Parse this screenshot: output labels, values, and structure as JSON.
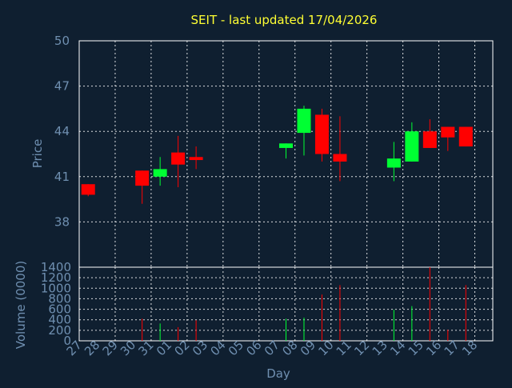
{
  "chart_data": {
    "type": "candlestick",
    "title": "SEIT - last updated 17/04/2026",
    "xlabel": "Day",
    "colors": {
      "background": "#0f1f30",
      "up": "#00ff33",
      "down": "#ff0000",
      "title": "#ffff33",
      "axis_text": "#6f8fb0",
      "grid": "#ffffff"
    },
    "x_ticks": [
      "27",
      "28",
      "29",
      "30",
      "31",
      "01",
      "02",
      "03",
      "04",
      "05",
      "06",
      "07",
      "08",
      "09",
      "10",
      "11",
      "12",
      "13",
      "14",
      "15",
      "16",
      "17",
      "18"
    ],
    "price_panel": {
      "ylabel": "Price",
      "ylim": [
        35,
        50
      ],
      "y_ticks": [
        "50",
        "47",
        "44",
        "41",
        "38"
      ],
      "y_tick_values": [
        50,
        47,
        44,
        41,
        38
      ],
      "candles": [
        {
          "day": "27",
          "open": 40.5,
          "high": 40.5,
          "low": 39.7,
          "close": 39.8
        },
        {
          "day": "30",
          "open": 41.4,
          "high": 41.4,
          "low": 39.2,
          "close": 40.4
        },
        {
          "day": "31",
          "open": 41.0,
          "high": 42.3,
          "low": 40.4,
          "close": 41.5
        },
        {
          "day": "01",
          "open": 42.6,
          "high": 43.7,
          "low": 40.3,
          "close": 41.8
        },
        {
          "day": "02",
          "open": 42.3,
          "high": 43.0,
          "low": 41.5,
          "close": 42.1
        },
        {
          "day": "07",
          "open": 42.9,
          "high": 43.2,
          "low": 42.2,
          "close": 43.2
        },
        {
          "day": "08",
          "open": 43.9,
          "high": 45.7,
          "low": 42.4,
          "close": 45.5
        },
        {
          "day": "09",
          "open": 45.1,
          "high": 45.5,
          "low": 42.0,
          "close": 42.5
        },
        {
          "day": "10",
          "open": 42.5,
          "high": 45.0,
          "low": 40.7,
          "close": 42.0
        },
        {
          "day": "13",
          "open": 41.6,
          "high": 43.3,
          "low": 40.7,
          "close": 42.2
        },
        {
          "day": "14",
          "open": 42.0,
          "high": 44.6,
          "low": 42.0,
          "close": 44.0
        },
        {
          "day": "15",
          "open": 44.0,
          "high": 44.8,
          "low": 42.9,
          "close": 42.9
        },
        {
          "day": "16",
          "open": 44.3,
          "high": 44.3,
          "low": 42.7,
          "close": 43.6
        },
        {
          "day": "17",
          "open": 44.3,
          "high": 44.3,
          "low": 43.0,
          "close": 43.0
        }
      ]
    },
    "volume_panel": {
      "ylabel": "Volume (0000)",
      "ylim": [
        0,
        1400
      ],
      "y_ticks": [
        "1400",
        "1200",
        "1000",
        "800",
        "600",
        "400",
        "200",
        "0"
      ],
      "y_tick_values": [
        1400,
        1200,
        1000,
        800,
        600,
        400,
        200,
        0
      ],
      "bars": [
        {
          "day": "30",
          "value": 420,
          "dir": "down"
        },
        {
          "day": "31",
          "value": 330,
          "dir": "up"
        },
        {
          "day": "01",
          "value": 260,
          "dir": "down"
        },
        {
          "day": "02",
          "value": 390,
          "dir": "down"
        },
        {
          "day": "07",
          "value": 420,
          "dir": "up"
        },
        {
          "day": "08",
          "value": 440,
          "dir": "up"
        },
        {
          "day": "09",
          "value": 880,
          "dir": "down"
        },
        {
          "day": "10",
          "value": 1060,
          "dir": "down"
        },
        {
          "day": "13",
          "value": 590,
          "dir": "up"
        },
        {
          "day": "14",
          "value": 660,
          "dir": "up"
        },
        {
          "day": "15",
          "value": 1400,
          "dir": "down"
        },
        {
          "day": "16",
          "value": 210,
          "dir": "down"
        },
        {
          "day": "17",
          "value": 1060,
          "dir": "down"
        }
      ]
    }
  }
}
